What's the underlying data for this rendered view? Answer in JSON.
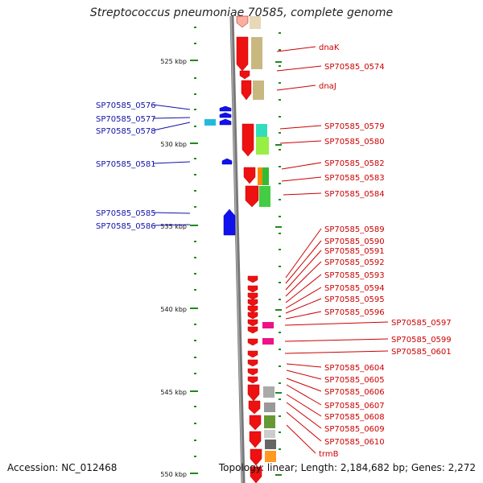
{
  "title": "Streptococcus pneumoniae 70585, complete genome",
  "footer": {
    "accession": "Accession: NC_012468",
    "topology": "Topology: linear; Length: 2,184,682 bp; Genes: 2,272"
  },
  "scale_ticks": [
    "525 kbp",
    "530 kbp",
    "535 kbp",
    "540 kbp",
    "545 kbp",
    "550 kbp"
  ],
  "colors": {
    "forward_gene": "#ee1111",
    "reverse_gene": "#1111ee",
    "backbone": "#888888",
    "tick": "#228822"
  },
  "left_labels": [
    "SP70585_0576",
    "SP70585_0577",
    "SP70585_0578",
    "SP70585_0581",
    "SP70585_0585",
    "SP70585_0586"
  ],
  "right_labels": [
    "dnaK",
    "SP70585_0574",
    "dnaJ",
    "SP70585_0579",
    "SP70585_0580",
    "SP70585_0582",
    "SP70585_0583",
    "SP70585_0584",
    "SP70585_0589",
    "SP70585_0590",
    "SP70585_0591",
    "SP70585_0592",
    "SP70585_0593",
    "SP70585_0594",
    "SP70585_0595",
    "SP70585_0596",
    "SP70585_0597",
    "SP70585_0599",
    "SP70585_0601",
    "SP70585_0604",
    "SP70585_0605",
    "SP70585_0606",
    "SP70585_0607",
    "SP70585_0608",
    "SP70585_0609",
    "SP70585_0610",
    "trmB"
  ]
}
